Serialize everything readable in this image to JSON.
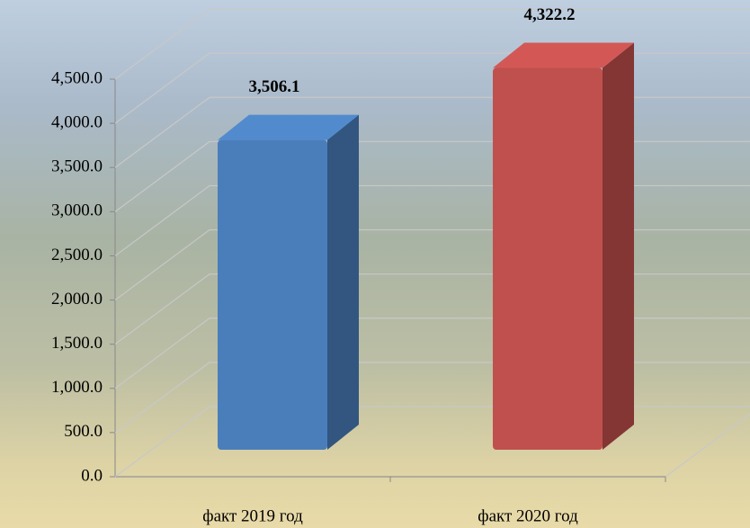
{
  "chart_data": {
    "type": "bar3d",
    "categories": [
      "факт 2019 год",
      "факт 2020 год"
    ],
    "values": [
      3506.1,
      4322.2
    ],
    "value_labels": [
      "3,506.1",
      "4,322.2"
    ],
    "colors": [
      "#4a7ebb",
      "#c0504d"
    ],
    "ylim": [
      0,
      4500
    ],
    "yticks": [
      {
        "value": 0,
        "label": "0.0"
      },
      {
        "value": 500,
        "label": "500.0"
      },
      {
        "value": 1000,
        "label": "1,000.0"
      },
      {
        "value": 1500,
        "label": "1,500.0"
      },
      {
        "value": 2000,
        "label": "2,000.0"
      },
      {
        "value": 2500,
        "label": "2,500.0"
      },
      {
        "value": 3000,
        "label": "3,000.0"
      },
      {
        "value": 3500,
        "label": "3,500.0"
      },
      {
        "value": 4000,
        "label": "4,000.0"
      },
      {
        "value": 4500,
        "label": "4,500.0"
      }
    ],
    "grid": true
  }
}
